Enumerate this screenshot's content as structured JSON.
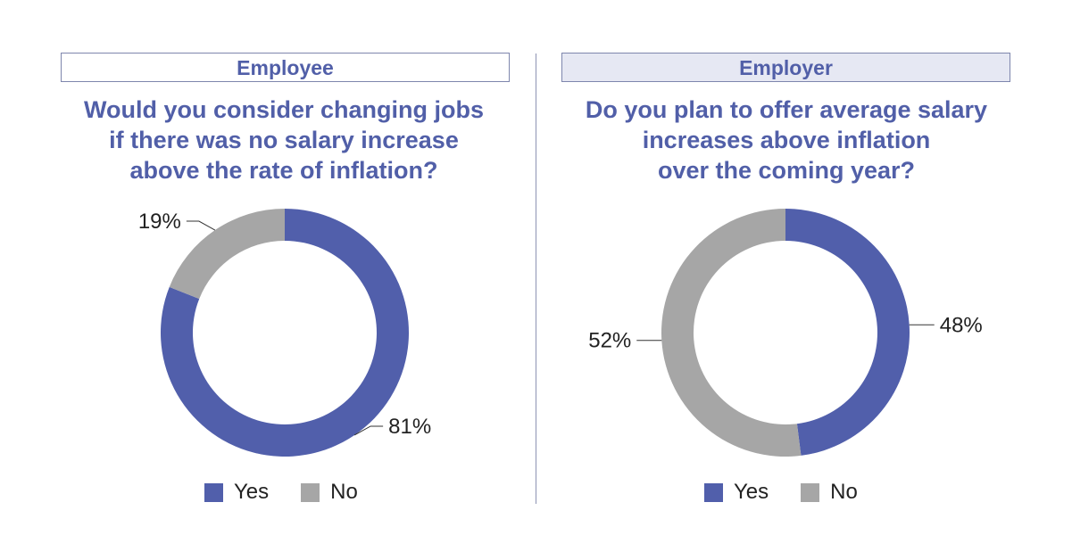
{
  "chart_data": [
    {
      "type": "pie",
      "variant": "donut",
      "panel_label": "Employee",
      "title": "Would you consider changing jobs\nif there was no salary increase\nabove the rate of inflation?",
      "categories": [
        "Yes",
        "No"
      ],
      "values": [
        81,
        19
      ],
      "data_labels": [
        "81%",
        "19%"
      ],
      "colors": [
        "#515fab",
        "#a6a6a6"
      ],
      "legend": {
        "position": "bottom",
        "entries": [
          "Yes",
          "No"
        ]
      }
    },
    {
      "type": "pie",
      "variant": "donut",
      "panel_label": "Employer",
      "title": "Do you plan to offer average salary\nincreases above inflation\nover the coming year?",
      "categories": [
        "Yes",
        "No"
      ],
      "values": [
        48,
        52
      ],
      "data_labels": [
        "48%",
        "52%"
      ],
      "colors": [
        "#515fab",
        "#a6a6a6"
      ],
      "legend": {
        "position": "bottom",
        "entries": [
          "Yes",
          "No"
        ]
      }
    }
  ]
}
